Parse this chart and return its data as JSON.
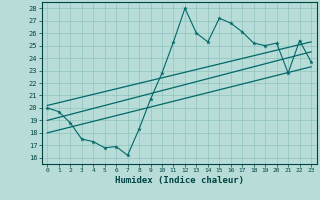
{
  "xlabel": "Humidex (Indice chaleur)",
  "xlim": [
    -0.5,
    23.5
  ],
  "ylim": [
    15.5,
    28.5
  ],
  "xticks": [
    0,
    1,
    2,
    3,
    4,
    5,
    6,
    7,
    8,
    9,
    10,
    11,
    12,
    13,
    14,
    15,
    16,
    17,
    18,
    19,
    20,
    21,
    22,
    23
  ],
  "yticks": [
    16,
    17,
    18,
    19,
    20,
    21,
    22,
    23,
    24,
    25,
    26,
    27,
    28
  ],
  "background_color": "#b8ddd8",
  "grid_color": "#90c4be",
  "line_color": "#006868",
  "data_x": [
    0,
    1,
    2,
    3,
    4,
    5,
    6,
    7,
    8,
    9,
    10,
    11,
    12,
    13,
    14,
    15,
    16,
    17,
    18,
    19,
    20,
    21,
    22,
    23
  ],
  "data_y": [
    20.0,
    19.7,
    18.8,
    17.5,
    17.3,
    16.8,
    16.9,
    16.2,
    18.3,
    20.7,
    22.8,
    25.3,
    28.0,
    26.0,
    25.3,
    27.2,
    26.8,
    26.1,
    25.2,
    25.0,
    25.2,
    22.8,
    25.4,
    23.7
  ],
  "trend1_x": [
    0,
    23
  ],
  "trend1_y": [
    20.2,
    25.3
  ],
  "trend2_x": [
    0,
    23
  ],
  "trend2_y": [
    19.0,
    24.5
  ],
  "trend3_x": [
    0,
    23
  ],
  "trend3_y": [
    18.0,
    23.3
  ]
}
